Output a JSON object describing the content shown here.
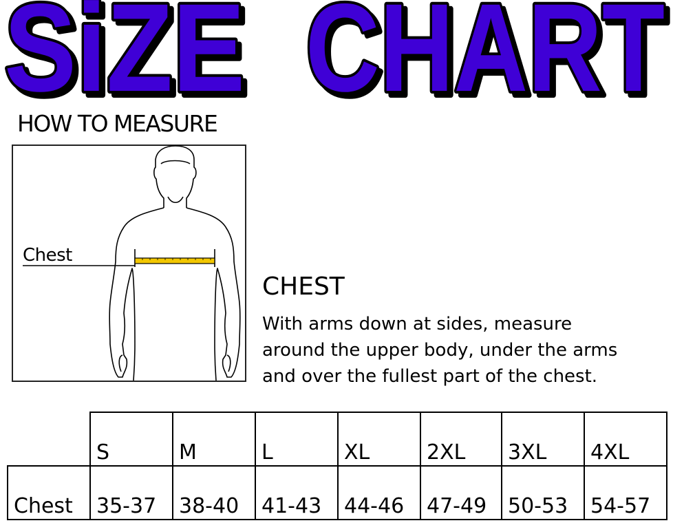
{
  "title": {
    "word1": "SiZE",
    "word2": "CHART",
    "fill_color": "#3f00d6"
  },
  "how_to_measure": {
    "heading": "HOW TO MEASURE",
    "figure_label": "Chest",
    "tape_color": "#f2c700"
  },
  "chest_instructions": {
    "heading": "CHEST",
    "lines": [
      "With arms down at sides, measure",
      "around the upper body, under the arms",
      "and over the fullest part of the chest."
    ]
  },
  "size_table": {
    "sizes": [
      "S",
      "M",
      "L",
      "XL",
      "2XL",
      "3XL",
      "4XL"
    ],
    "rows": [
      {
        "label": "Chest",
        "values": [
          "35-37",
          "38-40",
          "41-43",
          "44-46",
          "47-49",
          "50-53",
          "54-57"
        ]
      }
    ]
  }
}
